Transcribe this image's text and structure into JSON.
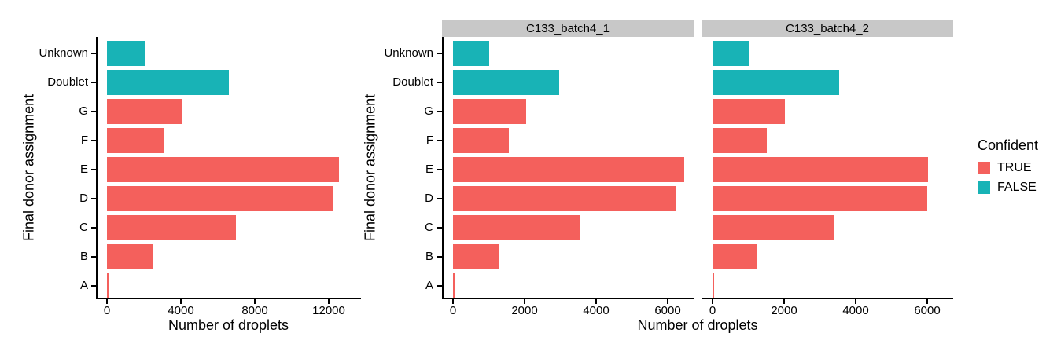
{
  "colors": {
    "confident_true": "#f4605c",
    "confident_false": "#18b3b6",
    "strip_bg": "#c8c8c8",
    "axis": "#000000"
  },
  "legend": {
    "title": "Confident",
    "items": [
      {
        "label": "TRUE",
        "color": "#f4605c"
      },
      {
        "label": "FALSE",
        "color": "#18b3b6"
      }
    ]
  },
  "chart_data": [
    {
      "type": "bar",
      "orientation": "horizontal",
      "facet_label": "",
      "title": "",
      "ylabel": "Final donor assignment",
      "xlabel": "Number of droplets",
      "categories": [
        "Unknown",
        "Doublet",
        "G",
        "F",
        "E",
        "D",
        "C",
        "B",
        "A"
      ],
      "values": [
        2050,
        6580,
        4100,
        3120,
        12550,
        12250,
        6970,
        2510,
        80
      ],
      "confident": [
        false,
        false,
        true,
        true,
        true,
        true,
        true,
        true,
        true
      ],
      "xticks": [
        0,
        4000,
        8000,
        12000
      ],
      "xlim": [
        0,
        13700
      ],
      "grid": false,
      "legend_position": "right"
    },
    {
      "type": "bar",
      "orientation": "horizontal",
      "facet_label": "C133_batch4_1",
      "title": "",
      "ylabel": "Final donor assignment",
      "xlabel": "Number of droplets",
      "categories": [
        "Unknown",
        "Doublet",
        "G",
        "F",
        "E",
        "D",
        "C",
        "B",
        "A"
      ],
      "values": [
        1010,
        2960,
        2050,
        1560,
        6470,
        6210,
        3540,
        1290,
        40
      ],
      "confident": [
        false,
        false,
        true,
        true,
        true,
        true,
        true,
        true,
        true
      ],
      "xticks": [
        0,
        2000,
        4000,
        6000
      ],
      "xlim": [
        0,
        6800
      ],
      "grid": false,
      "legend_position": "right"
    },
    {
      "type": "bar",
      "orientation": "horizontal",
      "facet_label": "C133_batch4_2",
      "title": "",
      "ylabel": "Final donor assignment",
      "xlabel": "Number of droplets",
      "categories": [
        "Unknown",
        "Doublet",
        "G",
        "F",
        "E",
        "D",
        "C",
        "B",
        "A"
      ],
      "values": [
        1020,
        3540,
        2030,
        1520,
        6020,
        5990,
        3380,
        1220,
        40
      ],
      "confident": [
        false,
        false,
        true,
        true,
        true,
        true,
        true,
        true,
        true
      ],
      "xticks": [
        0,
        2000,
        4000,
        6000
      ],
      "xlim": [
        0,
        6800
      ],
      "grid": false,
      "legend_position": "right"
    }
  ]
}
